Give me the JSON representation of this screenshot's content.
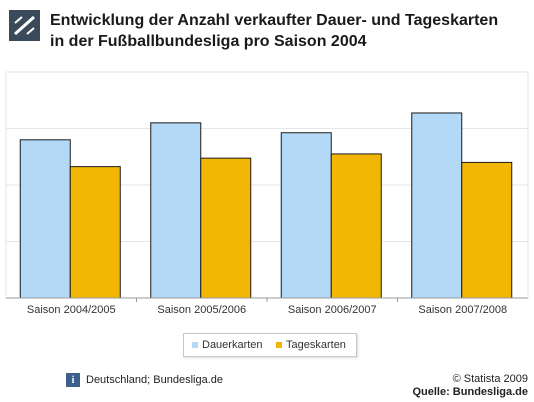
{
  "header": {
    "title_line1": "Entwicklung der Anzahl verkaufter Dauer- und Tageskarten",
    "title_line2": "in der Fußballbundesliga pro Saison 2004"
  },
  "chart_data": {
    "type": "bar",
    "categories": [
      "Saison 2004/2005",
      "Saison 2005/2006",
      "Saison 2006/2007",
      "Saison 2007/2008"
    ],
    "series": [
      {
        "name": "Dauerkarten",
        "values": [
          5.6,
          6.2,
          5.85,
          6.55
        ],
        "color": "#b3d9f7"
      },
      {
        "name": "Tageskarten",
        "values": [
          4.65,
          4.95,
          5.1,
          4.8
        ],
        "color": "#f2b705"
      }
    ],
    "ylim": [
      0,
      8
    ],
    "grid": true,
    "legend_position": "bottom"
  },
  "footer": {
    "info_icon_label": "i",
    "region": "Deutschland; Bundesliga.de",
    "copyright": "© Statista 2009",
    "source": "Quelle: Bundesliga.de"
  }
}
